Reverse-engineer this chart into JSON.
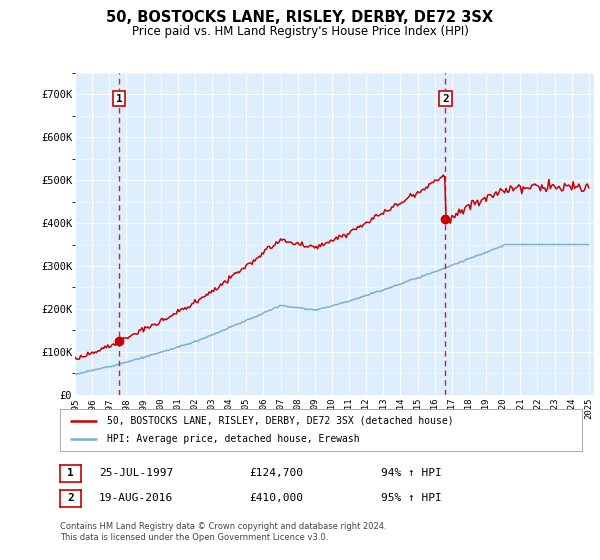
{
  "title": "50, BOSTOCKS LANE, RISLEY, DERBY, DE72 3SX",
  "subtitle": "Price paid vs. HM Land Registry's House Price Index (HPI)",
  "legend_line1": "50, BOSTOCKS LANE, RISLEY, DERBY, DE72 3SX (detached house)",
  "legend_line2": "HPI: Average price, detached house, Erewash",
  "annotation1": {
    "label": "1",
    "date": "25-JUL-1997",
    "price": "£124,700",
    "hpi": "94% ↑ HPI"
  },
  "annotation2": {
    "label": "2",
    "date": "19-AUG-2016",
    "price": "£410,000",
    "hpi": "95% ↑ HPI"
  },
  "footnote1": "Contains HM Land Registry data © Crown copyright and database right 2024.",
  "footnote2": "This data is licensed under the Open Government Licence v3.0.",
  "red_color": "#cc0000",
  "blue_color": "#7ab0d4",
  "background_plot": "#ddeeff",
  "background_fig": "#ffffff",
  "ylim": [
    0,
    750000
  ],
  "yticks": [
    0,
    100000,
    200000,
    300000,
    400000,
    500000,
    600000,
    700000
  ],
  "ytick_labels": [
    "£0",
    "£100K",
    "£200K",
    "£300K",
    "£400K",
    "£500K",
    "£600K",
    "£700K"
  ],
  "sale1_year": 1997.57,
  "sale2_year": 2016.63,
  "sale1_price": 124700,
  "sale2_price": 410000
}
